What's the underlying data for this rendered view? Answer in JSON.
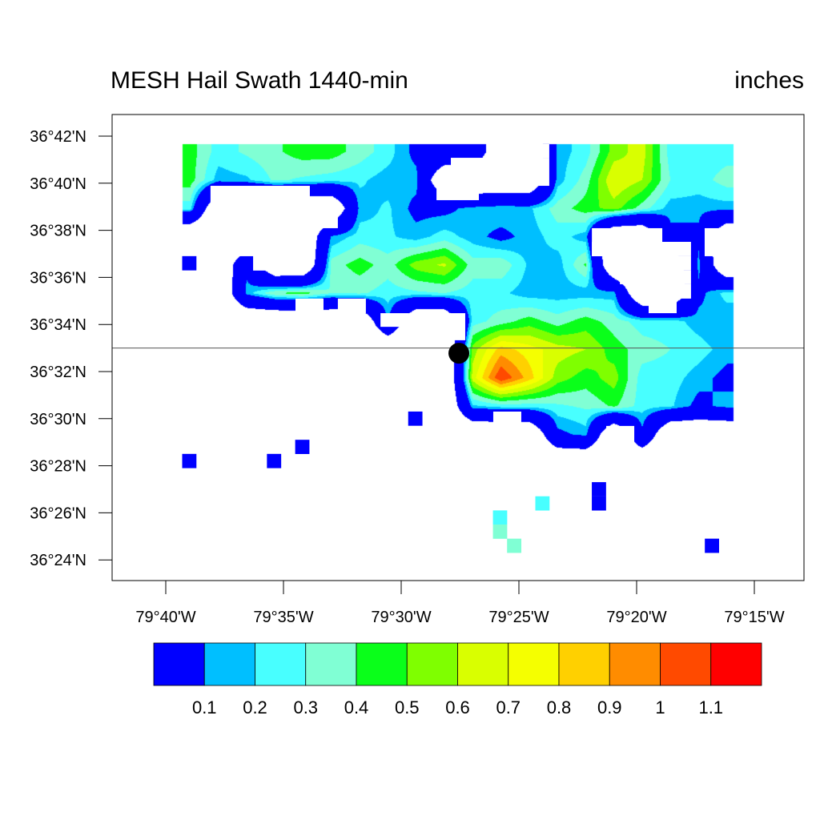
{
  "chart_data": {
    "type": "heatmap",
    "title": "MESH Hail Swath 1440-min",
    "units_label": "inches",
    "xlim_lon_min_west_of_79": [
      42.28,
      12.89
    ],
    "ylim_lat_min_north_of_36": [
      23.12,
      42.92
    ],
    "yticks": [
      42,
      40,
      38,
      36,
      34,
      32,
      30,
      28,
      26,
      24
    ],
    "yticklabels": [
      "36°42'N",
      "36°40'N",
      "36°38'N",
      "36°36'N",
      "36°34'N",
      "36°32'N",
      "36°30'N",
      "36°28'N",
      "36°26'N",
      "36°24'N"
    ],
    "xticks": [
      40,
      35,
      30,
      25,
      20,
      15
    ],
    "xticklabels": [
      "79°40'W",
      "79°35'W",
      "79°30'W",
      "79°25'W",
      "79°20'W",
      "79°15'W"
    ],
    "levels": [
      0.1,
      0.2,
      0.3,
      0.4,
      0.5,
      0.6,
      0.7,
      0.8,
      0.9,
      1,
      1.1
    ],
    "level_labels": [
      "0.1",
      "0.2",
      "0.3",
      "0.4",
      "0.5",
      "0.6",
      "0.7",
      "0.8",
      "0.9",
      "1",
      "1.1"
    ],
    "colors": [
      "#0000ff",
      "#00bfff",
      "#48ffff",
      "#80ffd4",
      "#0aff1a",
      "#7fff00",
      "#d9ff00",
      "#f5ff00",
      "#ffd000",
      "#ff8c00",
      "#ff4a00",
      "#ff0000"
    ],
    "grid": {
      "lon0": 38.98,
      "dlon": -1.2,
      "lat0": 41.35,
      "dlat": -1.2,
      "values": [
        [
          0.45,
          0.25,
          0.32,
          0.38,
          0.45,
          0.45,
          0.35,
          0.25,
          0.05,
          0.05,
          0.05,
          null,
          null,
          0.15,
          0.25,
          0.55,
          0.65,
          0.25,
          0.25,
          0.25
        ],
        [
          0.45,
          0.15,
          0.18,
          0.32,
          0.28,
          0.25,
          0.22,
          0.15,
          0.15,
          null,
          null,
          null,
          null,
          0.15,
          0.35,
          0.7,
          0.6,
          0.3,
          0.25,
          0.35
        ],
        [
          0.25,
          null,
          null,
          null,
          null,
          null,
          0.15,
          0.22,
          0.05,
          0.05,
          0.15,
          0.2,
          0.18,
          0.35,
          0.45,
          0.55,
          0.35,
          0.15,
          0.15,
          0.15
        ],
        [
          null,
          null,
          null,
          null,
          null,
          0.12,
          0.25,
          0.22,
          0.15,
          0.25,
          0.15,
          0.05,
          0.15,
          0.25,
          0.15,
          null,
          null,
          0.05,
          0.05,
          null
        ],
        [
          null,
          null,
          0.05,
          null,
          null,
          0.35,
          0.45,
          0.35,
          0.55,
          0.62,
          0.35,
          0.38,
          0.18,
          0.15,
          0.42,
          null,
          null,
          null,
          0.15,
          null
        ],
        [
          null,
          null,
          0.15,
          0.4,
          0.45,
          0.3,
          0.32,
          0.25,
          0.28,
          0.3,
          0.25,
          0.22,
          0.15,
          0.15,
          0.15,
          0.15,
          null,
          null,
          0.05,
          0.25
        ],
        [
          null,
          null,
          null,
          null,
          null,
          null,
          null,
          0.12,
          null,
          null,
          0.25,
          0.35,
          0.45,
          0.35,
          0.45,
          0.35,
          0.25,
          0.25,
          0.15,
          0.1
        ],
        [
          null,
          null,
          null,
          null,
          null,
          null,
          null,
          null,
          null,
          null,
          0.55,
          0.85,
          0.75,
          0.65,
          0.6,
          0.45,
          0.35,
          0.3,
          0.25,
          0.15
        ],
        [
          null,
          null,
          null,
          null,
          null,
          null,
          null,
          null,
          null,
          null,
          0.65,
          1.1,
          0.85,
          0.55,
          0.45,
          0.55,
          0.25,
          0.25,
          0.15,
          0.05
        ],
        [
          null,
          null,
          null,
          null,
          null,
          null,
          null,
          null,
          null,
          null,
          0.18,
          0.25,
          0.25,
          0.28,
          0.32,
          0.42,
          0.25,
          0.22,
          0.05,
          0.15
        ],
        [
          null,
          null,
          null,
          null,
          null,
          null,
          null,
          null,
          null,
          null,
          null,
          null,
          null,
          0.05,
          0.15,
          null,
          0.05,
          null,
          null,
          null
        ]
      ]
    },
    "missing_boxes": [
      [
        38.1,
        39.89,
        33.88,
        36.9
      ],
      [
        36.29,
        36.9,
        33.88,
        36.29
      ],
      [
        33.88,
        39.28,
        32.69,
        38.09
      ],
      [
        28.5,
        40.5,
        26.7,
        39.28
      ],
      [
        27.89,
        41.08,
        23.71,
        39.89
      ],
      [
        26.09,
        41.66,
        23.71,
        41.08
      ],
      [
        21.9,
        38.09,
        18.91,
        36.9
      ],
      [
        21.9,
        37.51,
        17.69,
        36.9
      ],
      [
        21.29,
        36.9,
        17.69,
        36.29
      ],
      [
        20.71,
        36.29,
        17.69,
        35.71
      ],
      [
        20.1,
        35.71,
        17.69,
        35.1
      ],
      [
        19.49,
        35.1,
        18.3,
        34.48
      ],
      [
        17.11,
        38.09,
        15.92,
        36.9
      ],
      [
        16.5,
        36.9,
        15.92,
        36.29
      ],
      [
        34.49,
        35.1,
        33.3,
        34.48
      ],
      [
        32.69,
        35.1,
        31.5,
        34.48
      ],
      [
        30.88,
        34.48,
        29.69,
        33.9
      ],
      [
        29.69,
        34.48,
        27.28,
        33.33
      ],
      [
        26.09,
        30.3,
        24.9,
        29.69
      ],
      [
        21.29,
        29.69,
        20.1,
        28.73
      ]
    ],
    "isolated_cells": [
      {
        "lon": 39.0,
        "lat": 36.6,
        "value": 0.05
      },
      {
        "lon": 39.0,
        "lat": 28.2,
        "value": 0.05
      },
      {
        "lon": 35.4,
        "lat": 28.2,
        "value": 0.05
      },
      {
        "lon": 34.2,
        "lat": 28.8,
        "value": 0.05
      },
      {
        "lon": 29.4,
        "lat": 30.0,
        "value": 0.05
      },
      {
        "lon": 16.8,
        "lat": 24.6,
        "value": 0.05
      },
      {
        "lon": 21.6,
        "lat": 27.0,
        "value": 0.05
      },
      {
        "lon": 21.6,
        "lat": 26.4,
        "value": 0.05
      },
      {
        "lon": 25.8,
        "lat": 25.8,
        "value": 0.25
      },
      {
        "lon": 25.8,
        "lat": 25.2,
        "value": 0.3
      },
      {
        "lon": 25.2,
        "lat": 24.6,
        "value": 0.35
      },
      {
        "lon": 24.0,
        "lat": 26.4,
        "value": 0.25
      }
    ],
    "marker": {
      "lon": 27.55,
      "lat": 32.78
    },
    "reference_line_lat": 33.0
  }
}
